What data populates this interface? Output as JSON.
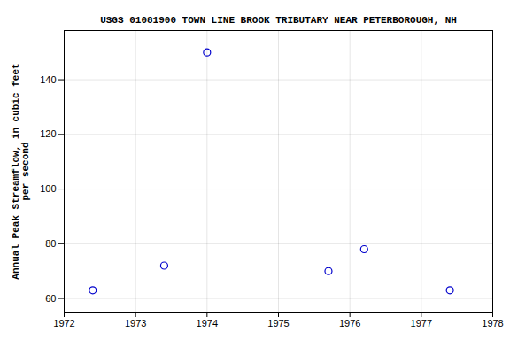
{
  "chart_data": {
    "type": "scatter",
    "title": "USGS 01081900 TOWN LINE BROOK TRIBUTARY NEAR PETERBOROUGH, NH",
    "ylabel": "Annual Peak Streamflow, in cubic feet\nper second",
    "x": [
      1972.4,
      1973.4,
      1974.0,
      1975.7,
      1976.2,
      1977.4
    ],
    "values": [
      63,
      72,
      150,
      70,
      78,
      63
    ],
    "color": "#0000cc",
    "marker": "circle",
    "xlim": [
      1972,
      1978
    ],
    "ylim": [
      55,
      158
    ],
    "xticks": [
      1972,
      1973,
      1974,
      1975,
      1976,
      1977,
      1978
    ],
    "yticks": [
      60,
      80,
      100,
      120,
      140
    ],
    "grid": true
  }
}
